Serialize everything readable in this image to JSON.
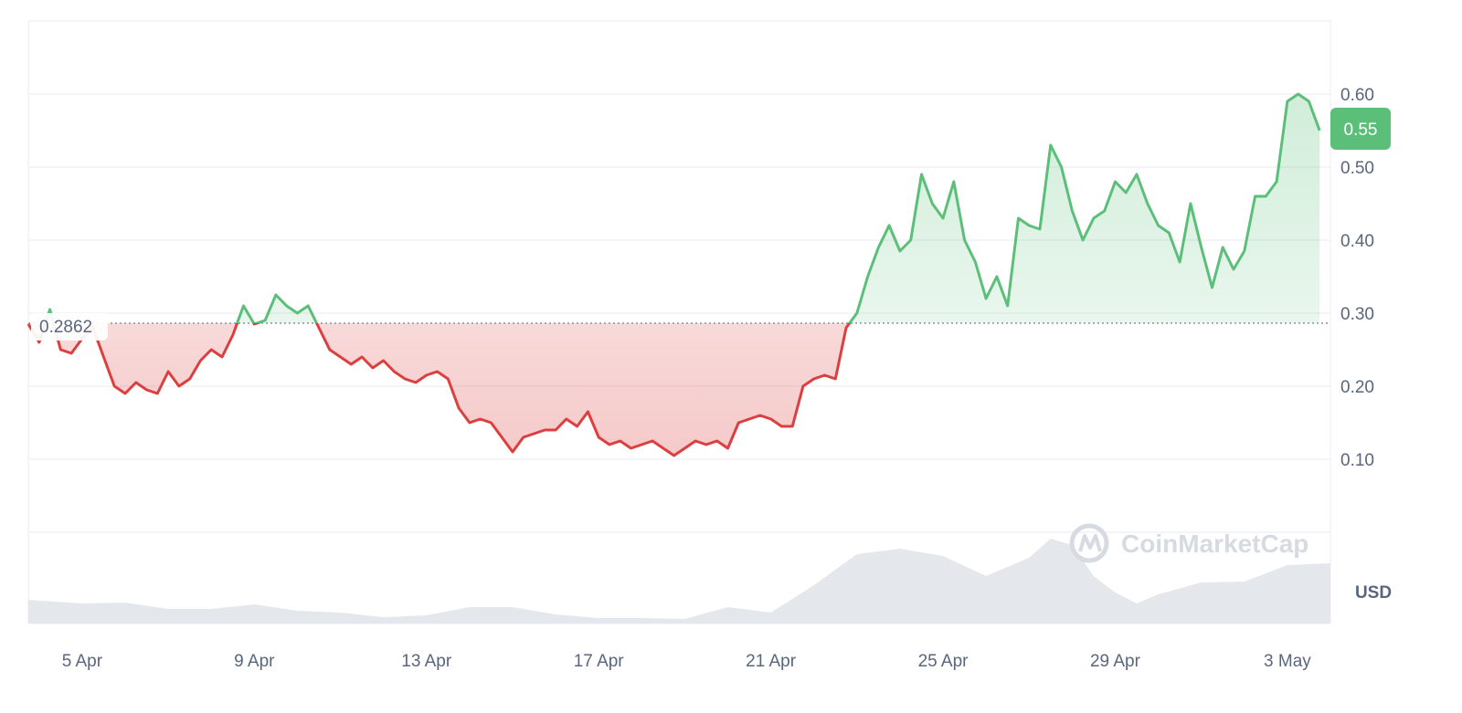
{
  "chart_data": {
    "type": "area",
    "currency_label": "USD",
    "watermark": "CoinMarketCap",
    "reference_price": 0.2862,
    "reference_label": "0.2862",
    "current_price": 0.55,
    "current_label": "0.55",
    "y_ticks": [
      0.1,
      0.2,
      0.3,
      0.4,
      0.5,
      0.6
    ],
    "y_tick_labels": [
      "0.10",
      "0.20",
      "0.30",
      "0.40",
      "0.50",
      "0.60"
    ],
    "ylim": [
      0.0,
      0.7
    ],
    "x_range": [
      "2024-04-03T18:00",
      "2024-05-04T00:00"
    ],
    "x_ticks": [
      "2024-04-05",
      "2024-04-09",
      "2024-04-13",
      "2024-04-17",
      "2024-04-21",
      "2024-04-25",
      "2024-04-29",
      "2024-05-03"
    ],
    "x_tick_labels": [
      "5 Apr",
      "9 Apr",
      "13 Apr",
      "17 Apr",
      "21 Apr",
      "25 Apr",
      "29 Apr",
      "3 May"
    ],
    "grid": true,
    "colors": {
      "up": "#5bbf7a",
      "down": "#dc3f3f",
      "grid": "#eff2f5",
      "axis_text": "#58667e",
      "volume": "#e4e7ec"
    },
    "series": [
      {
        "values": [
          [
            "2024-04-03T18:00",
            0.285
          ],
          [
            "2024-04-04T00:00",
            0.26
          ],
          [
            "2024-04-04T06:00",
            0.305
          ],
          [
            "2024-04-04T12:00",
            0.25
          ],
          [
            "2024-04-04T18:00",
            0.245
          ],
          [
            "2024-04-05T00:00",
            0.265
          ],
          [
            "2024-04-05T06:00",
            0.28
          ],
          [
            "2024-04-05T12:00",
            0.24
          ],
          [
            "2024-04-05T18:00",
            0.2
          ],
          [
            "2024-04-06T00:00",
            0.19
          ],
          [
            "2024-04-06T06:00",
            0.205
          ],
          [
            "2024-04-06T12:00",
            0.195
          ],
          [
            "2024-04-06T18:00",
            0.19
          ],
          [
            "2024-04-07T00:00",
            0.22
          ],
          [
            "2024-04-07T06:00",
            0.2
          ],
          [
            "2024-04-07T12:00",
            0.21
          ],
          [
            "2024-04-07T18:00",
            0.235
          ],
          [
            "2024-04-08T00:00",
            0.25
          ],
          [
            "2024-04-08T06:00",
            0.24
          ],
          [
            "2024-04-08T12:00",
            0.27
          ],
          [
            "2024-04-08T18:00",
            0.31
          ],
          [
            "2024-04-09T00:00",
            0.285
          ],
          [
            "2024-04-09T06:00",
            0.29
          ],
          [
            "2024-04-09T12:00",
            0.325
          ],
          [
            "2024-04-09T18:00",
            0.31
          ],
          [
            "2024-04-10T00:00",
            0.3
          ],
          [
            "2024-04-10T06:00",
            0.31
          ],
          [
            "2024-04-10T12:00",
            0.28
          ],
          [
            "2024-04-10T18:00",
            0.25
          ],
          [
            "2024-04-11T00:00",
            0.24
          ],
          [
            "2024-04-11T06:00",
            0.23
          ],
          [
            "2024-04-11T12:00",
            0.24
          ],
          [
            "2024-04-11T18:00",
            0.225
          ],
          [
            "2024-04-12T00:00",
            0.235
          ],
          [
            "2024-04-12T06:00",
            0.22
          ],
          [
            "2024-04-12T12:00",
            0.21
          ],
          [
            "2024-04-12T18:00",
            0.205
          ],
          [
            "2024-04-13T00:00",
            0.215
          ],
          [
            "2024-04-13T06:00",
            0.22
          ],
          [
            "2024-04-13T12:00",
            0.21
          ],
          [
            "2024-04-13T18:00",
            0.17
          ],
          [
            "2024-04-14T00:00",
            0.15
          ],
          [
            "2024-04-14T06:00",
            0.155
          ],
          [
            "2024-04-14T12:00",
            0.15
          ],
          [
            "2024-04-14T18:00",
            0.13
          ],
          [
            "2024-04-15T00:00",
            0.11
          ],
          [
            "2024-04-15T06:00",
            0.13
          ],
          [
            "2024-04-15T12:00",
            0.135
          ],
          [
            "2024-04-15T18:00",
            0.14
          ],
          [
            "2024-04-16T00:00",
            0.14
          ],
          [
            "2024-04-16T06:00",
            0.155
          ],
          [
            "2024-04-16T12:00",
            0.145
          ],
          [
            "2024-04-16T18:00",
            0.165
          ],
          [
            "2024-04-17T00:00",
            0.13
          ],
          [
            "2024-04-17T06:00",
            0.12
          ],
          [
            "2024-04-17T12:00",
            0.125
          ],
          [
            "2024-04-17T18:00",
            0.115
          ],
          [
            "2024-04-18T00:00",
            0.12
          ],
          [
            "2024-04-18T06:00",
            0.125
          ],
          [
            "2024-04-18T12:00",
            0.115
          ],
          [
            "2024-04-18T18:00",
            0.105
          ],
          [
            "2024-04-19T00:00",
            0.115
          ],
          [
            "2024-04-19T06:00",
            0.125
          ],
          [
            "2024-04-19T12:00",
            0.12
          ],
          [
            "2024-04-19T18:00",
            0.125
          ],
          [
            "2024-04-20T00:00",
            0.115
          ],
          [
            "2024-04-20T06:00",
            0.15
          ],
          [
            "2024-04-20T12:00",
            0.155
          ],
          [
            "2024-04-20T18:00",
            0.16
          ],
          [
            "2024-04-21T00:00",
            0.155
          ],
          [
            "2024-04-21T06:00",
            0.145
          ],
          [
            "2024-04-21T12:00",
            0.145
          ],
          [
            "2024-04-21T18:00",
            0.2
          ],
          [
            "2024-04-22T00:00",
            0.21
          ],
          [
            "2024-04-22T06:00",
            0.215
          ],
          [
            "2024-04-22T12:00",
            0.21
          ],
          [
            "2024-04-22T18:00",
            0.28
          ],
          [
            "2024-04-23T00:00",
            0.3
          ],
          [
            "2024-04-23T06:00",
            0.35
          ],
          [
            "2024-04-23T12:00",
            0.39
          ],
          [
            "2024-04-23T18:00",
            0.42
          ],
          [
            "2024-04-24T00:00",
            0.385
          ],
          [
            "2024-04-24T06:00",
            0.4
          ],
          [
            "2024-04-24T12:00",
            0.49
          ],
          [
            "2024-04-24T18:00",
            0.45
          ],
          [
            "2024-04-25T00:00",
            0.43
          ],
          [
            "2024-04-25T06:00",
            0.48
          ],
          [
            "2024-04-25T12:00",
            0.4
          ],
          [
            "2024-04-25T18:00",
            0.37
          ],
          [
            "2024-04-26T00:00",
            0.32
          ],
          [
            "2024-04-26T06:00",
            0.35
          ],
          [
            "2024-04-26T12:00",
            0.31
          ],
          [
            "2024-04-26T18:00",
            0.43
          ],
          [
            "2024-04-27T00:00",
            0.42
          ],
          [
            "2024-04-27T06:00",
            0.415
          ],
          [
            "2024-04-27T12:00",
            0.53
          ],
          [
            "2024-04-27T18:00",
            0.5
          ],
          [
            "2024-04-28T00:00",
            0.44
          ],
          [
            "2024-04-28T06:00",
            0.4
          ],
          [
            "2024-04-28T12:00",
            0.43
          ],
          [
            "2024-04-28T18:00",
            0.44
          ],
          [
            "2024-04-29T00:00",
            0.48
          ],
          [
            "2024-04-29T06:00",
            0.465
          ],
          [
            "2024-04-29T12:00",
            0.49
          ],
          [
            "2024-04-29T18:00",
            0.45
          ],
          [
            "2024-04-30T00:00",
            0.42
          ],
          [
            "2024-04-30T06:00",
            0.41
          ],
          [
            "2024-04-30T12:00",
            0.37
          ],
          [
            "2024-04-30T18:00",
            0.45
          ],
          [
            "2024-05-01T00:00",
            0.39
          ],
          [
            "2024-05-01T06:00",
            0.335
          ],
          [
            "2024-05-01T12:00",
            0.39
          ],
          [
            "2024-05-01T18:00",
            0.36
          ],
          [
            "2024-05-02T00:00",
            0.385
          ],
          [
            "2024-05-02T06:00",
            0.46
          ],
          [
            "2024-05-02T12:00",
            0.46
          ],
          [
            "2024-05-02T18:00",
            0.48
          ],
          [
            "2024-05-03T00:00",
            0.59
          ],
          [
            "2024-05-03T06:00",
            0.6
          ],
          [
            "2024-05-03T12:00",
            0.59
          ],
          [
            "2024-05-03T18:00",
            0.55
          ]
        ]
      }
    ],
    "volume": {
      "values": [
        [
          "2024-04-03T18:00",
          0.26
        ],
        [
          "2024-04-05T00:00",
          0.22
        ],
        [
          "2024-04-06T00:00",
          0.23
        ],
        [
          "2024-04-07T00:00",
          0.16
        ],
        [
          "2024-04-08T00:00",
          0.16
        ],
        [
          "2024-04-09T00:00",
          0.21
        ],
        [
          "2024-04-10T00:00",
          0.14
        ],
        [
          "2024-04-11T00:00",
          0.12
        ],
        [
          "2024-04-12T00:00",
          0.07
        ],
        [
          "2024-04-13T00:00",
          0.09
        ],
        [
          "2024-04-14T00:00",
          0.18
        ],
        [
          "2024-04-15T00:00",
          0.18
        ],
        [
          "2024-04-16T00:00",
          0.1
        ],
        [
          "2024-04-17T00:00",
          0.06
        ],
        [
          "2024-04-18T00:00",
          0.06
        ],
        [
          "2024-04-19T00:00",
          0.05
        ],
        [
          "2024-04-20T00:00",
          0.18
        ],
        [
          "2024-04-21T00:00",
          0.12
        ],
        [
          "2024-04-22T00:00",
          0.42
        ],
        [
          "2024-04-23T00:00",
          0.76
        ],
        [
          "2024-04-24T00:00",
          0.82
        ],
        [
          "2024-04-25T00:00",
          0.74
        ],
        [
          "2024-04-26T00:00",
          0.52
        ],
        [
          "2024-04-27T00:00",
          0.72
        ],
        [
          "2024-04-27T12:00",
          0.93
        ],
        [
          "2024-04-28T00:00",
          0.86
        ],
        [
          "2024-04-28T12:00",
          0.52
        ],
        [
          "2024-04-29T00:00",
          0.34
        ],
        [
          "2024-04-29T12:00",
          0.22
        ],
        [
          "2024-04-30T00:00",
          0.32
        ],
        [
          "2024-05-01T00:00",
          0.45
        ],
        [
          "2024-05-02T00:00",
          0.46
        ],
        [
          "2024-05-02T12:00",
          0.55
        ],
        [
          "2024-05-03T00:00",
          0.64
        ],
        [
          "2024-05-04T00:00",
          0.66
        ]
      ]
    }
  }
}
